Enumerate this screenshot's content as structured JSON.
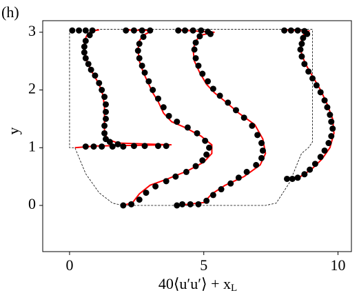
{
  "chart_data": {
    "type": "line",
    "panel_label": "(h)",
    "y_label": "y",
    "x_label": {
      "main": "40⟨u′u′⟩ + x",
      "sub": "L"
    },
    "xlim": [
      -1,
      10.5
    ],
    "ylim": [
      -0.8,
      3.2
    ],
    "xticks": [
      0,
      5,
      10
    ],
    "yticks": [
      0,
      1,
      2,
      3
    ],
    "grid": false,
    "series": [
      {
        "style": "dashed",
        "color": "#000000",
        "x": [
          0,
          0,
          0.2,
          0.6,
          1.1,
          1.6,
          2.0,
          7.3,
          7.7,
          8.2,
          8.64,
          8.9,
          9.05,
          9.05,
          0
        ],
        "y": [
          3.05,
          1.0,
          1.0,
          0.55,
          0.22,
          0.04,
          0.0,
          0.0,
          0.04,
          0.4,
          0.9,
          1.0,
          1.1,
          3.05,
          3.05
        ]
      },
      {
        "style": "line",
        "color": "#ff0000",
        "x": [
          1.1,
          0.8,
          0.65,
          0.55,
          0.55,
          0.65,
          0.85,
          1.1,
          1.25,
          1.3,
          1.3,
          1.3,
          1.4,
          1.8,
          3.8,
          1.0,
          0.2
        ],
        "y": [
          3.04,
          3.02,
          2.95,
          2.85,
          2.7,
          2.5,
          2.3,
          2.1,
          1.9,
          1.7,
          1.5,
          1.3,
          1.15,
          1.08,
          1.05,
          1.03,
          1.0
        ]
      },
      {
        "style": "line",
        "color": "#ff0000",
        "x": [
          2.0,
          3.1,
          2.75,
          2.6,
          2.55,
          2.6,
          2.75,
          2.95,
          3.1,
          3.3,
          3.5,
          3.8,
          4.3,
          4.9,
          5.3,
          5.3,
          5.0,
          4.4,
          3.6,
          3.0,
          2.6,
          2.35,
          2.0
        ],
        "y": [
          3.04,
          3.03,
          2.95,
          2.85,
          2.7,
          2.5,
          2.3,
          2.1,
          1.95,
          1.8,
          1.6,
          1.45,
          1.35,
          1.2,
          1.05,
          0.9,
          0.75,
          0.6,
          0.45,
          0.35,
          0.2,
          0.05,
          0.0
        ]
      },
      {
        "style": "line",
        "color": "#ff0000",
        "x": [
          4.0,
          5.4,
          4.9,
          4.7,
          4.6,
          4.65,
          4.85,
          5.1,
          5.4,
          5.8,
          6.3,
          6.9,
          7.2,
          7.3,
          7.1,
          6.5,
          5.8,
          5.3,
          5.0,
          4.0
        ],
        "y": [
          3.04,
          3.0,
          2.95,
          2.85,
          2.7,
          2.5,
          2.3,
          2.1,
          1.95,
          1.8,
          1.6,
          1.4,
          1.15,
          0.9,
          0.7,
          0.5,
          0.35,
          0.2,
          0.05,
          0.0
        ]
      },
      {
        "style": "line",
        "color": "#ff0000",
        "x": [
          8.0,
          8.9,
          8.7,
          8.6,
          8.65,
          8.85,
          9.1,
          9.35,
          9.6,
          9.8,
          9.85,
          9.7,
          9.4,
          9.0,
          8.6,
          8.1
        ],
        "y": [
          3.04,
          3.02,
          2.95,
          2.8,
          2.6,
          2.4,
          2.2,
          2.0,
          1.75,
          1.5,
          1.25,
          1.0,
          0.8,
          0.62,
          0.5,
          0.45
        ]
      },
      {
        "style": "markers",
        "color": "#000000",
        "x": [
          0.1,
          0.35,
          0.6,
          0.85,
          0.75,
          0.6,
          0.55,
          0.55,
          0.6,
          0.7,
          0.8,
          0.95,
          1.1,
          1.2,
          1.3,
          1.35,
          1.35,
          1.35,
          1.3,
          1.3,
          1.35,
          1.5,
          1.8,
          3.6,
          3.3,
          2.8,
          2.4,
          2.0,
          1.6,
          1.2,
          0.9,
          0.6
        ],
        "y": [
          3.03,
          3.03,
          3.03,
          3.03,
          2.95,
          2.85,
          2.75,
          2.65,
          2.55,
          2.45,
          2.35,
          2.25,
          2.12,
          2.0,
          1.88,
          1.75,
          1.62,
          1.5,
          1.38,
          1.25,
          1.15,
          1.1,
          1.06,
          1.03,
          1.03,
          1.03,
          1.03,
          1.02,
          1.02,
          1.02,
          1.02,
          1.02
        ]
      },
      {
        "style": "markers",
        "color": "#000000",
        "x": [
          2.1,
          2.4,
          2.7,
          3.0,
          2.75,
          2.6,
          2.55,
          2.6,
          2.7,
          2.8,
          2.95,
          3.1,
          3.3,
          3.5,
          3.7,
          4.0,
          4.4,
          4.75,
          5.05,
          5.2,
          5.1,
          4.95,
          4.7,
          4.35,
          3.95,
          3.6,
          3.2,
          2.85,
          2.6,
          2.3,
          2.0
        ],
        "y": [
          3.03,
          3.03,
          3.03,
          3.03,
          2.92,
          2.8,
          2.68,
          2.55,
          2.42,
          2.3,
          2.15,
          2.0,
          1.85,
          1.7,
          1.55,
          1.45,
          1.35,
          1.25,
          1.12,
          1.0,
          0.88,
          0.78,
          0.68,
          0.58,
          0.5,
          0.42,
          0.33,
          0.22,
          0.1,
          0.02,
          0.0
        ]
      },
      {
        "style": "markers",
        "color": "#000000",
        "x": [
          4.05,
          4.3,
          4.6,
          4.9,
          5.15,
          5.25,
          4.85,
          4.7,
          4.65,
          4.7,
          4.8,
          4.95,
          5.15,
          5.35,
          5.6,
          5.9,
          6.2,
          6.5,
          6.8,
          7.0,
          7.15,
          7.2,
          7.15,
          6.95,
          6.6,
          6.3,
          6.0,
          5.65,
          5.35,
          5.1,
          4.8,
          4.5,
          4.2,
          4.0
        ],
        "y": [
          3.03,
          3.03,
          3.03,
          3.03,
          3.01,
          2.97,
          2.93,
          2.82,
          2.7,
          2.55,
          2.42,
          2.28,
          2.15,
          2.02,
          1.9,
          1.78,
          1.65,
          1.52,
          1.38,
          1.22,
          1.08,
          0.95,
          0.82,
          0.7,
          0.58,
          0.48,
          0.38,
          0.28,
          0.18,
          0.08,
          0.02,
          0.02,
          0.02,
          0.0
        ]
      },
      {
        "style": "markers",
        "color": "#000000",
        "x": [
          8.0,
          8.25,
          8.5,
          8.75,
          8.85,
          8.7,
          8.65,
          8.6,
          8.65,
          8.75,
          8.9,
          9.05,
          9.2,
          9.35,
          9.5,
          9.6,
          9.7,
          9.75,
          9.8,
          9.75,
          9.65,
          9.5,
          9.35,
          9.15,
          8.95,
          8.75,
          8.5,
          8.3,
          8.1
        ],
        "y": [
          3.03,
          3.03,
          3.03,
          3.02,
          2.97,
          2.9,
          2.8,
          2.7,
          2.58,
          2.45,
          2.32,
          2.2,
          2.08,
          1.96,
          1.82,
          1.7,
          1.57,
          1.45,
          1.33,
          1.2,
          1.08,
          0.95,
          0.84,
          0.72,
          0.62,
          0.54,
          0.48,
          0.46,
          0.46
        ]
      }
    ]
  }
}
